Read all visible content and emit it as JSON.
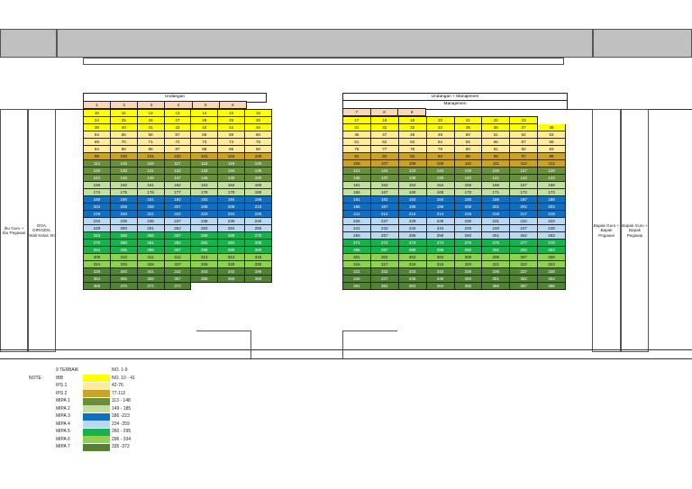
{
  "left_block": {
    "title": "Undangan",
    "header_row": [
      "1",
      "2",
      "3",
      "4",
      "5",
      "6"
    ],
    "rows": [
      {
        "c": "ibb",
        "v": [
          "10",
          "11",
          "12",
          "13",
          "14",
          "15",
          "16"
        ]
      },
      {
        "c": "ibb",
        "v": [
          "24",
          "25",
          "26",
          "27",
          "28",
          "29",
          "30"
        ]
      },
      {
        "c": "ibb",
        "v": [
          "39",
          "40",
          "41",
          "42",
          "43",
          "44",
          "45"
        ]
      },
      {
        "c": "ips1",
        "v": [
          "54",
          "55",
          "56",
          "57",
          "58",
          "59",
          "60"
        ]
      },
      {
        "c": "ips1",
        "v": [
          "69",
          "70",
          "71",
          "72",
          "73",
          "74",
          "75"
        ]
      },
      {
        "c": "ips1",
        "v": [
          "84",
          "85",
          "86",
          "87",
          "88",
          "89",
          "90"
        ]
      },
      {
        "c": "ips2",
        "v": [
          "99",
          "100",
          "101",
          "102",
          "103",
          "104",
          "105"
        ]
      },
      {
        "c": "mipa1",
        "v": [
          "114",
          "115",
          "116",
          "117",
          "118",
          "119",
          "120"
        ]
      },
      {
        "c": "mipa1",
        "v": [
          "129",
          "130",
          "131",
          "132",
          "133",
          "134",
          "135"
        ]
      },
      {
        "c": "mipa1",
        "v": [
          "144",
          "145",
          "146",
          "147",
          "148",
          "149",
          "150"
        ]
      },
      {
        "c": "mipa2",
        "v": [
          "159",
          "160",
          "161",
          "162",
          "163",
          "164",
          "165"
        ]
      },
      {
        "c": "mipa2",
        "v": [
          "174",
          "175",
          "176",
          "177",
          "178",
          "179",
          "180"
        ]
      },
      {
        "c": "mipa3",
        "v": [
          "189",
          "190",
          "191",
          "192",
          "193",
          "194",
          "195"
        ]
      },
      {
        "c": "mipa3",
        "v": [
          "204",
          "205",
          "206",
          "207",
          "208",
          "209",
          "210"
        ]
      },
      {
        "c": "mipa3",
        "v": [
          "219",
          "220",
          "221",
          "222",
          "223",
          "224",
          "225"
        ]
      },
      {
        "c": "mipa4",
        "v": [
          "234",
          "235",
          "236",
          "237",
          "238",
          "239",
          "240"
        ]
      },
      {
        "c": "mipa4",
        "v": [
          "249",
          "250",
          "251",
          "252",
          "253",
          "254",
          "255"
        ]
      },
      {
        "c": "mipa5",
        "v": [
          "264",
          "265",
          "266",
          "267",
          "268",
          "269",
          "270"
        ]
      },
      {
        "c": "mipa5",
        "v": [
          "279",
          "280",
          "281",
          "282",
          "283",
          "284",
          "285"
        ]
      },
      {
        "c": "mipa5",
        "v": [
          "294",
          "295",
          "296",
          "297",
          "298",
          "299",
          "300"
        ]
      },
      {
        "c": "mipa6",
        "v": [
          "309",
          "310",
          "311",
          "312",
          "313",
          "314",
          "315"
        ]
      },
      {
        "c": "mipa6",
        "v": [
          "324",
          "325",
          "326",
          "327",
          "328",
          "329",
          "330"
        ]
      },
      {
        "c": "mipa7",
        "v": [
          "339",
          "340",
          "341",
          "342",
          "343",
          "344",
          "345"
        ]
      },
      {
        "c": "mipa7",
        "v": [
          "354",
          "355",
          "356",
          "357",
          "358",
          "359",
          "360"
        ]
      },
      {
        "c": "mipa7",
        "v": [
          "369",
          "370",
          "371",
          "372"
        ]
      }
    ]
  },
  "right_block": {
    "title": "Undangan + Manajemen",
    "subtitle": "Manajemen",
    "header_row": [
      "7",
      "8",
      "9"
    ],
    "rows": [
      {
        "c": "ibb",
        "v": [
          "17",
          "18",
          "19",
          "20",
          "21",
          "22",
          "23",
          ""
        ]
      },
      {
        "c": "ibb",
        "v": [
          "31",
          "32",
          "33",
          "34",
          "35",
          "36",
          "37",
          "38"
        ]
      },
      {
        "c": "ips1",
        "v": [
          "46",
          "47",
          "48",
          "49",
          "50",
          "51",
          "52",
          "53"
        ]
      },
      {
        "c": "ips1",
        "v": [
          "61",
          "62",
          "63",
          "64",
          "65",
          "66",
          "67",
          "68"
        ]
      },
      {
        "c": "ips1",
        "v": [
          "76",
          "77",
          "78",
          "79",
          "80",
          "81",
          "82",
          "83"
        ]
      },
      {
        "c": "ips2",
        "v": [
          "91",
          "92",
          "93",
          "94",
          "95",
          "96",
          "97",
          "98"
        ]
      },
      {
        "c": "ips2",
        "v": [
          "106",
          "107",
          "108",
          "109",
          "110",
          "111",
          "112",
          "113"
        ]
      },
      {
        "c": "mipa1",
        "v": [
          "121",
          "122",
          "123",
          "124",
          "125",
          "126",
          "127",
          "128"
        ]
      },
      {
        "c": "mipa1",
        "v": [
          "136",
          "137",
          "138",
          "139",
          "140",
          "141",
          "142",
          "143"
        ]
      },
      {
        "c": "mipa2",
        "v": [
          "151",
          "152",
          "153",
          "154",
          "155",
          "156",
          "157",
          "158"
        ]
      },
      {
        "c": "mipa2",
        "v": [
          "166",
          "167",
          "168",
          "169",
          "170",
          "171",
          "172",
          "173"
        ]
      },
      {
        "c": "mipa3",
        "v": [
          "181",
          "182",
          "183",
          "184",
          "185",
          "186",
          "187",
          "188"
        ]
      },
      {
        "c": "mipa3",
        "v": [
          "196",
          "197",
          "198",
          "199",
          "200",
          "201",
          "202",
          "203"
        ]
      },
      {
        "c": "mipa3",
        "v": [
          "211",
          "212",
          "213",
          "214",
          "215",
          "216",
          "217",
          "218"
        ]
      },
      {
        "c": "mipa4",
        "v": [
          "226",
          "227",
          "228",
          "229",
          "230",
          "231",
          "232",
          "233"
        ]
      },
      {
        "c": "mipa4",
        "v": [
          "241",
          "242",
          "243",
          "244",
          "245",
          "246",
          "247",
          "248"
        ]
      },
      {
        "c": "mipa4",
        "v": [
          "256",
          "257",
          "258",
          "259",
          "260",
          "261",
          "262",
          "263"
        ]
      },
      {
        "c": "mipa5",
        "v": [
          "271",
          "272",
          "273",
          "274",
          "275",
          "276",
          "277",
          "278"
        ]
      },
      {
        "c": "mipa5",
        "v": [
          "286",
          "287",
          "288",
          "289",
          "290",
          "291",
          "292",
          "293"
        ]
      },
      {
        "c": "mipa6",
        "v": [
          "301",
          "302",
          "303",
          "304",
          "305",
          "306",
          "307",
          "308"
        ]
      },
      {
        "c": "mipa6",
        "v": [
          "316",
          "317",
          "318",
          "319",
          "320",
          "321",
          "322",
          "323"
        ]
      },
      {
        "c": "mipa7",
        "v": [
          "331",
          "332",
          "333",
          "334",
          "335",
          "336",
          "337",
          "338"
        ]
      },
      {
        "c": "mipa7",
        "v": [
          "346",
          "347",
          "348",
          "349",
          "350",
          "351",
          "352",
          "353"
        ]
      },
      {
        "c": "mipa7",
        "v": [
          "361",
          "362",
          "363",
          "364",
          "365",
          "366",
          "367",
          "368"
        ]
      }
    ]
  },
  "side_labels": {
    "left_outer": "Ibu Guru + Ibu Pegawai",
    "left_inner": "OOA, DIRIGEN, Wali Kelas XII",
    "right_inner": "Bapak Guru + Bapak Pegawai",
    "right_outer": "Bapak Guru + Bapak Pegawai"
  },
  "legend": {
    "note_label": "NOTE :",
    "items": [
      {
        "name": "9 TERBAIK",
        "range": "NO. 1-9",
        "color": "#fbd5b5"
      },
      {
        "name": "IBB",
        "range": "NO. 10 - 41",
        "color": "#ffff00"
      },
      {
        "name": "IPS 1",
        "range": "42-76",
        "color": "#ffeb9c"
      },
      {
        "name": "IPS 2",
        "range": "77-112",
        "color": "#c9a227"
      },
      {
        "name": "MIPA 1",
        "range": "113 - 148",
        "color": "#6a8f3c"
      },
      {
        "name": "MIPA 2",
        "range": "149 - 185",
        "color": "#c4dea0"
      },
      {
        "name": "MIPA 3",
        "range": "186 -223",
        "color": "#0f70c0"
      },
      {
        "name": "MIPA 4",
        "range": "224 -259",
        "color": "#bdd7ee"
      },
      {
        "name": "MIPA 5",
        "range": "260 - 295",
        "color": "#18b14f"
      },
      {
        "name": "MIPA 6",
        "range": "296 - 334",
        "color": "#92d050"
      },
      {
        "name": "MIPA 7",
        "range": "335 -372",
        "color": "#538135"
      }
    ]
  },
  "colors": {
    "top": "#fbd5b5",
    "ibb": "#ffff00",
    "ips1": "#ffeb9c",
    "ips2": "#c9a227",
    "mipa1": "#6a8f3c",
    "mipa2": "#c4dea0",
    "mipa3": "#0f70c0",
    "mipa4": "#bdd7ee",
    "mipa5": "#18b14f",
    "mipa6": "#92d050",
    "mipa7": "#538135"
  }
}
